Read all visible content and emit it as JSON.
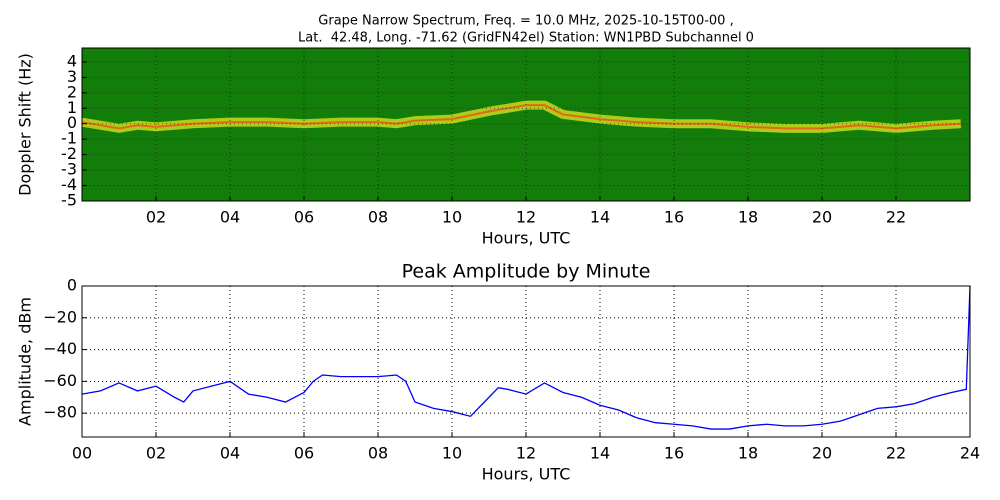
{
  "chart_data": [
    {
      "type": "spectrogram",
      "title": [
        "Grape Narrow Spectrum, Freq. = 10.0 MHz, 2025-10-15T00-00 ,",
        "Lat.  42.48, Long. -71.62 (GridFN42el) Station: WN1PBD Subchannel 0"
      ],
      "xlabel": "Hours, UTC",
      "ylabel": "Doppler Shift (Hz)",
      "x": [
        0,
        1,
        1.5,
        2,
        3,
        4,
        5,
        6,
        7,
        8,
        8.5,
        9,
        10,
        11,
        12,
        12.5,
        13,
        14,
        15,
        16,
        17,
        18,
        19,
        20,
        21,
        22,
        23,
        23.75
      ],
      "values": [
        0.1,
        -0.3,
        -0.1,
        -0.2,
        0,
        0.1,
        0.1,
        0,
        0.1,
        0.1,
        0,
        0.2,
        0.3,
        0.8,
        1.2,
        1.2,
        0.6,
        0.3,
        0.1,
        0,
        0,
        -0.2,
        -0.3,
        -0.3,
        -0.1,
        -0.3,
        -0.1,
        0
      ],
      "background": "#137d0a",
      "colors": [
        "#e2e81e",
        "#f0501a"
      ],
      "xlim": [
        0,
        24
      ],
      "ylim": [
        -5,
        4.9
      ],
      "xticks": [
        {
          "value": 2,
          "label": "02"
        },
        {
          "value": 4,
          "label": "04"
        },
        {
          "value": 6,
          "label": "06"
        },
        {
          "value": 8,
          "label": "08"
        },
        10,
        12,
        14,
        16,
        18,
        20,
        22
      ],
      "yticks": [
        -5,
        -4,
        -3,
        -2,
        -1,
        0,
        1,
        2,
        3,
        4
      ],
      "grid": true
    },
    {
      "type": "line",
      "title": "Peak Amplitude by Minute",
      "xlabel": "Hours, UTC",
      "ylabel": "Amplitude, dBm",
      "x": [
        0,
        0.5,
        1,
        1.5,
        2,
        2.5,
        2.75,
        3,
        3.5,
        4,
        4.5,
        5,
        5.5,
        6,
        6.25,
        6.5,
        7,
        7.5,
        8,
        8.5,
        8.75,
        9,
        9.5,
        10,
        10.5,
        11,
        11.25,
        11.5,
        12,
        12.5,
        13,
        13.5,
        14,
        14.5,
        15,
        15.5,
        16,
        16.5,
        17,
        17.5,
        18,
        18.5,
        19,
        19.5,
        20,
        20.5,
        21,
        21.5,
        22,
        22.5,
        23,
        23.5,
        23.9,
        24
      ],
      "values": [
        -68,
        -66,
        -61,
        -66,
        -63,
        -70,
        -73,
        -66,
        -63,
        -60,
        -68,
        -70,
        -73,
        -67,
        -60,
        -56,
        -57,
        -57,
        -57,
        -56,
        -60,
        -73,
        -77,
        -79,
        -82,
        -70,
        -64,
        -65,
        -68,
        -61,
        -67,
        -70,
        -75,
        -78,
        -83,
        -86,
        -87,
        -88,
        -90,
        -90,
        -88,
        -87,
        -88,
        -88,
        -87,
        -85,
        -81,
        -77,
        -76,
        -74,
        -70,
        -67,
        -65,
        0
      ],
      "color": "#0000ff",
      "xlim": [
        0,
        24
      ],
      "ylim": [
        -95,
        0
      ],
      "xticks": [
        {
          "value": 0,
          "label": "00"
        },
        {
          "value": 2,
          "label": "02"
        },
        {
          "value": 4,
          "label": "04"
        },
        {
          "value": 6,
          "label": "06"
        },
        {
          "value": 8,
          "label": "08"
        },
        10,
        12,
        14,
        16,
        18,
        20,
        22,
        24
      ],
      "yticks": [
        0,
        {
          "value": -20,
          "label": "−20"
        },
        {
          "value": -40,
          "label": "−40"
        },
        {
          "value": -60,
          "label": "−60"
        },
        {
          "value": -80,
          "label": "−80"
        }
      ],
      "grid": true
    }
  ]
}
